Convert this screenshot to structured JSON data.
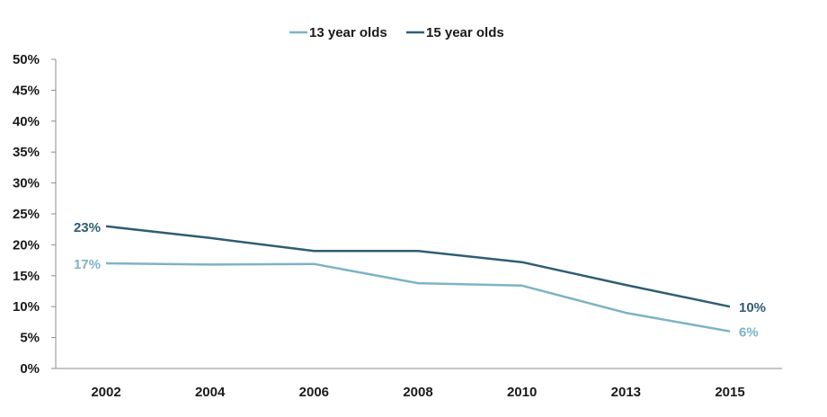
{
  "chart_data": {
    "type": "line",
    "title": "",
    "xlabel": "",
    "ylabel": "",
    "categories": [
      "2002",
      "2004",
      "2006",
      "2008",
      "2010",
      "2013",
      "2015"
    ],
    "ylim": [
      0,
      50
    ],
    "yticks": [
      0,
      5,
      10,
      15,
      20,
      25,
      30,
      35,
      40,
      45,
      50
    ],
    "ytick_labels": [
      "0%",
      "5%",
      "10%",
      "15%",
      "20%",
      "25%",
      "30%",
      "35%",
      "40%",
      "45%",
      "50%"
    ],
    "grid": false,
    "legend_position": "top-center",
    "series": [
      {
        "name": "13 year olds",
        "color": "#7db3c4",
        "values": [
          17,
          16.8,
          16.9,
          13.8,
          13.4,
          9,
          6
        ],
        "labels": [
          {
            "index": 0,
            "text": "17%"
          },
          {
            "index": 6,
            "text": "6%"
          }
        ]
      },
      {
        "name": "15 year olds",
        "color": "#2f5d73",
        "values": [
          23,
          21.1,
          19,
          19,
          17.2,
          13.5,
          10
        ],
        "labels": [
          {
            "index": 0,
            "text": "23%"
          },
          {
            "index": 6,
            "text": "10%"
          }
        ]
      }
    ]
  }
}
